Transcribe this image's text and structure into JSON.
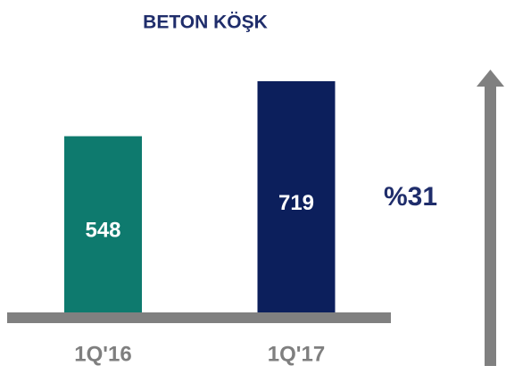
{
  "chart_data": {
    "type": "bar",
    "title": "BETON KÖŞK",
    "categories": [
      "1Q'16",
      "1Q'17"
    ],
    "values": [
      548,
      719
    ],
    "colors": [
      "#0e7a6e",
      "#0c1f5c"
    ],
    "annotation": "%31"
  }
}
